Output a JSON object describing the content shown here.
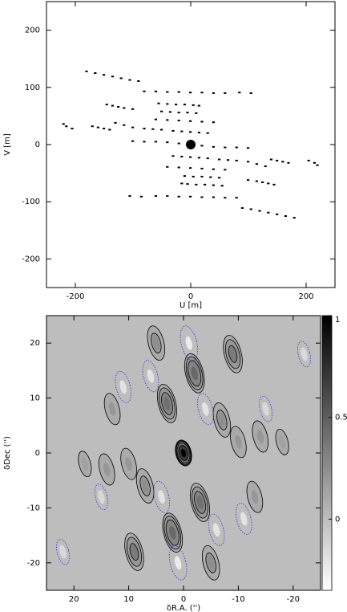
{
  "chart_data": [
    {
      "type": "scatter",
      "xlabel": "U [m]",
      "ylabel": "V [m]",
      "xlim": [
        -250,
        250
      ],
      "ylim": [
        -250,
        250
      ],
      "xticks": [
        -200,
        0,
        200
      ],
      "yticks": [
        -200,
        -100,
        0,
        100,
        200
      ],
      "series": [
        {
          "color": "#000000",
          "marker_size": 2,
          "x": [
            -180,
            -165,
            -150,
            -135,
            -120,
            -105,
            -90,
            -80,
            -60,
            -40,
            -20,
            0,
            20,
            40,
            60,
            85,
            105,
            -145,
            -135,
            -125,
            -115,
            -100,
            -55,
            -40,
            -25,
            -10,
            5,
            15,
            -50,
            -35,
            -20,
            -5,
            10,
            -220,
            -215,
            -205,
            -170,
            -160,
            -150,
            -140,
            -130,
            -115,
            -100,
            -60,
            -40,
            -20,
            0,
            20,
            40,
            -30,
            -15,
            0,
            15,
            30,
            -80,
            -65,
            -50,
            -100,
            -80,
            -60,
            -40,
            -20,
            20,
            40,
            60,
            80,
            100,
            180,
            165,
            150,
            135,
            120,
            105,
            90,
            80,
            60,
            40,
            20,
            0,
            -20,
            -40,
            -60,
            -85,
            -105,
            145,
            135,
            125,
            115,
            100,
            55,
            40,
            25,
            10,
            -5,
            -15,
            50,
            35,
            20,
            5,
            -10,
            220,
            215,
            205,
            170,
            160,
            150,
            140,
            130,
            115,
            100,
            60,
            40,
            20,
            0,
            -20,
            -40,
            30,
            15,
            0,
            -15,
            -30,
            80,
            65,
            50
          ],
          "y": [
            128,
            125,
            122,
            119,
            116,
            113,
            111,
            93,
            93,
            92,
            92,
            91,
            91,
            90,
            90,
            91,
            90,
            70,
            68,
            66,
            64,
            62,
            72,
            71,
            70,
            70,
            69,
            68,
            58,
            57,
            56,
            56,
            55,
            36,
            32,
            28,
            32,
            30,
            28,
            26,
            38,
            34,
            30,
            44,
            43,
            42,
            41,
            40,
            39,
            24,
            23,
            22,
            21,
            20,
            28,
            27,
            26,
            6,
            5,
            5,
            4,
            2,
            -2,
            -4,
            -5,
            -5,
            -6,
            -128,
            -125,
            -122,
            -119,
            -116,
            -113,
            -111,
            -93,
            -93,
            -92,
            -92,
            -91,
            -91,
            -90,
            -90,
            -91,
            -90,
            -70,
            -68,
            -66,
            -64,
            -62,
            -72,
            -71,
            -70,
            -70,
            -69,
            -68,
            -58,
            -57,
            -56,
            -56,
            -55,
            -36,
            -32,
            -28,
            -32,
            -30,
            -28,
            -26,
            -38,
            -34,
            -30,
            -44,
            -43,
            -42,
            -41,
            -40,
            -39,
            -24,
            -23,
            -22,
            -21,
            -20,
            -28,
            -27,
            -26
          ]
        },
        {
          "color": "#000000",
          "marker_size": 6,
          "x": [
            0
          ],
          "y": [
            0
          ]
        }
      ]
    },
    {
      "type": "image",
      "xlabel": "δR.A. ('')",
      "ylabel": "δDec ('')",
      "xlim": [
        25,
        -25
      ],
      "ylim": [
        -25,
        25
      ],
      "xticks": [
        20,
        10,
        0,
        -10,
        -20
      ],
      "yticks": [
        -20,
        -10,
        0,
        10,
        20
      ],
      "colorbar_lim": [
        -0.35,
        1
      ],
      "colorbar_ticks": [
        0,
        0.5,
        1
      ],
      "background_value": 0,
      "contour_levels": [
        -0.1,
        0.1,
        0.2,
        0.3,
        0.45,
        0.7
      ],
      "positive_contour_color": "#000000",
      "negative_contour_color": "#3a3ad0",
      "lobes": {
        "x": [
          0,
          -2,
          2,
          3,
          -3,
          -9,
          9,
          -7,
          7,
          13,
          -13,
          5,
          -5,
          -14,
          14,
          18,
          -18,
          10,
          -10,
          1,
          -1,
          -4,
          4,
          6,
          -6,
          -11,
          11,
          15,
          -15,
          22,
          -22
        ],
        "y": [
          0,
          14.5,
          -14.5,
          9,
          -9,
          18,
          -18,
          6,
          -6,
          8,
          -8,
          20,
          -20,
          3,
          -3,
          -2,
          2,
          -2,
          2,
          -20,
          20,
          8,
          -8,
          14,
          -14,
          -12,
          12,
          -8,
          8,
          -18,
          18
        ],
        "values": [
          1,
          0.45,
          0.45,
          0.4,
          0.4,
          0.35,
          0.35,
          0.25,
          0.25,
          0.2,
          0.2,
          0.25,
          0.25,
          0.2,
          0.2,
          0.15,
          0.15,
          0.2,
          0.2,
          -0.25,
          -0.25,
          -0.2,
          -0.2,
          -0.2,
          -0.2,
          -0.2,
          -0.2,
          -0.15,
          -0.15,
          -0.15,
          -0.15
        ]
      }
    }
  ]
}
